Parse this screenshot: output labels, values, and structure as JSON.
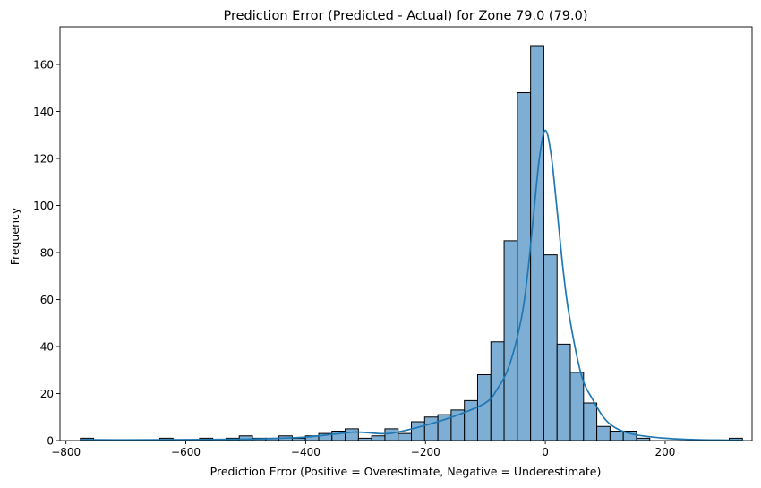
{
  "chart_data": {
    "type": "bar",
    "title": "Prediction Error (Predicted - Actual) for Zone 79.0 (79.0)",
    "xlabel": "Prediction Error (Positive = Overestimate, Negative = Underestimate)",
    "ylabel": "Frequency",
    "xlim": [
      -810,
      345
    ],
    "ylim": [
      0,
      176
    ],
    "xticks": [
      -800,
      -600,
      -400,
      -200,
      0,
      200
    ],
    "xtick_labels": [
      "−800",
      "−600",
      "−400",
      "−200",
      "0",
      "200"
    ],
    "yticks": [
      0,
      20,
      40,
      60,
      80,
      100,
      120,
      140,
      160
    ],
    "ytick_labels": [
      "0",
      "20",
      "40",
      "60",
      "80",
      "100",
      "120",
      "140",
      "160"
    ],
    "grid": false,
    "bins": {
      "start": -776,
      "width": 22.1,
      "counts": [
        1,
        0,
        0,
        0,
        0,
        0,
        1,
        0,
        0,
        1,
        0,
        1,
        2,
        1,
        1,
        2,
        1,
        2,
        3,
        4,
        5,
        1,
        2,
        5,
        3,
        8,
        10,
        11,
        13,
        17,
        28,
        42,
        85,
        148,
        168,
        79,
        41,
        29,
        16,
        6,
        4,
        4,
        1,
        0,
        0,
        0,
        0,
        0,
        0,
        1
      ]
    },
    "kde": {
      "x": [
        -776,
        -700,
        -600,
        -500,
        -450,
        -400,
        -350,
        -320,
        -300,
        -270,
        -250,
        -200,
        -150,
        -100,
        -80,
        -60,
        -40,
        -30,
        -20,
        -10,
        0,
        10,
        20,
        30,
        40,
        60,
        80,
        100,
        120,
        150,
        200,
        250,
        300,
        330
      ],
      "y": [
        0.4,
        0.3,
        0.4,
        0.6,
        0.9,
        1.5,
        2.8,
        3.6,
        3.4,
        2.9,
        3.4,
        6.5,
        10.5,
        16,
        22,
        32,
        52,
        70,
        95,
        120,
        132,
        121,
        97,
        72,
        53,
        28,
        17,
        9,
        5,
        2.5,
        1,
        0.4,
        0.2,
        0.1
      ]
    },
    "colors": {
      "bar_fill": "#7eaed3",
      "bar_edge": "#000000",
      "kde_line": "#1f77b4"
    }
  }
}
